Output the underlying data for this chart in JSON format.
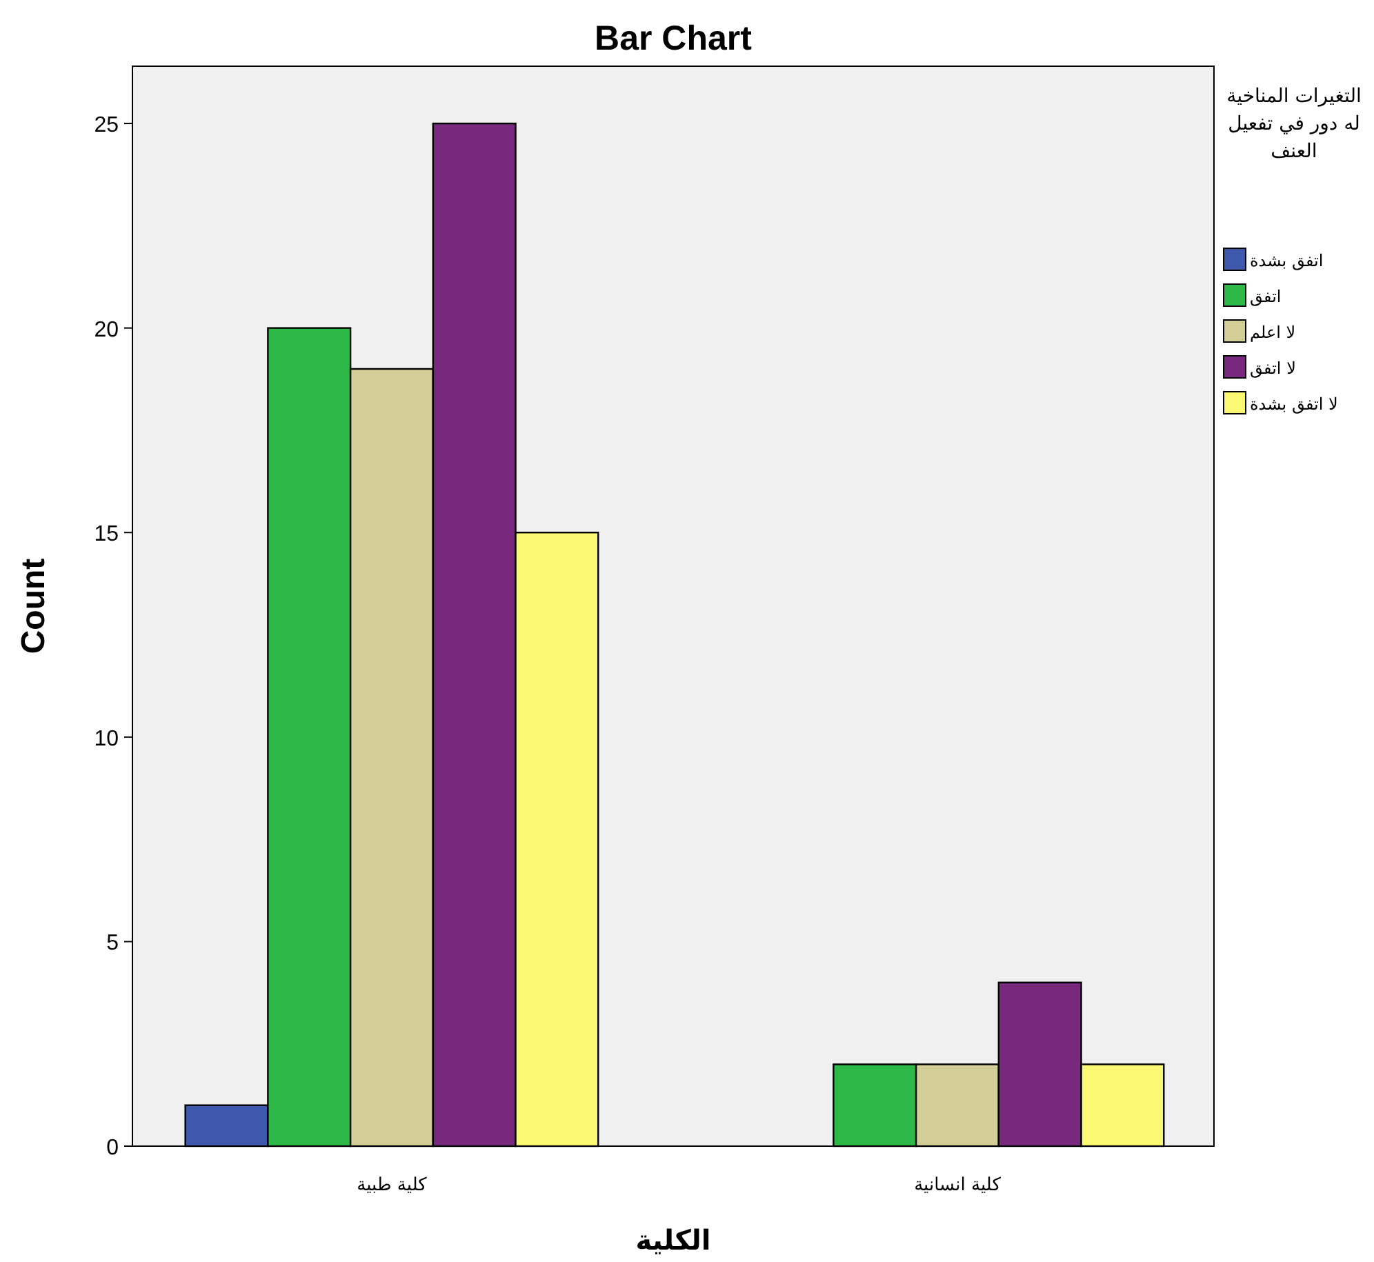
{
  "chart_data": {
    "type": "bar",
    "title": "Bar Chart",
    "xlabel": "الكلية",
    "ylabel": "Count",
    "legend_title": "التغيرات المناخية له دور في تفعيل العنف",
    "categories": [
      "كلية طبية",
      "كلية انسانية"
    ],
    "series": [
      {
        "name": "اتفق بشدة",
        "color": "#3e58ac",
        "values": [
          1,
          0
        ]
      },
      {
        "name": "اتفق",
        "color": "#2eb848",
        "values": [
          20,
          2
        ]
      },
      {
        "name": "لا اعلم",
        "color": "#d3ce97",
        "values": [
          19,
          2
        ]
      },
      {
        "name": "لا اتفق",
        "color": "#78287d",
        "values": [
          25,
          4
        ]
      },
      {
        "name": "لا اتفق بشدة",
        "color": "#fbf873",
        "values": [
          15,
          2
        ]
      }
    ],
    "ylim": [
      0,
      26.4
    ],
    "yticks": [
      0,
      5,
      10,
      15,
      20,
      25
    ],
    "grid": false,
    "legend": "right"
  }
}
